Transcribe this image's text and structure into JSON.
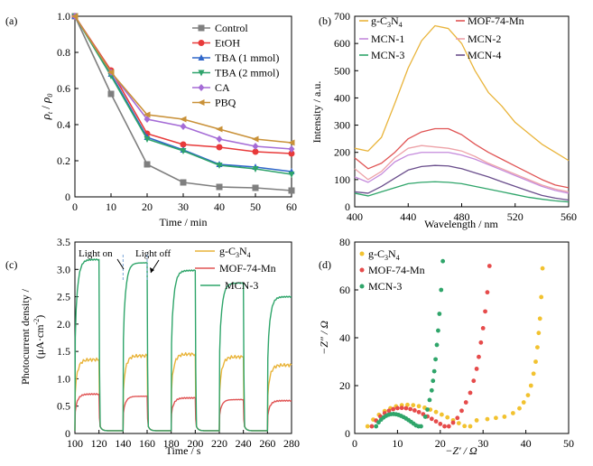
{
  "chart_data": [
    {
      "panel_label": "(a)",
      "type": "line",
      "xlabel": "Time / min",
      "ylabel": "ρt / ρ0",
      "ylabel_parts": {
        "rho_t": "ρ",
        "sub_t": "t",
        "slash": " / ",
        "rho_0": "ρ",
        "sub_0": "0"
      },
      "xlim": [
        0,
        60
      ],
      "ylim": [
        0,
        1.0
      ],
      "xticks": [
        "0",
        "10",
        "20",
        "30",
        "40",
        "50",
        "60"
      ],
      "yticks": [
        "0",
        "0.2",
        "0.4",
        "0.6",
        "0.8",
        "1.0"
      ],
      "x": [
        0,
        10,
        20,
        30,
        40,
        50,
        60
      ],
      "legend_position": "top-right",
      "series": [
        {
          "name": "Control",
          "color": "#7f7f7f",
          "marker": "square",
          "values": [
            1.0,
            0.57,
            0.18,
            0.08,
            0.055,
            0.05,
            0.035
          ]
        },
        {
          "name": "EtOH",
          "color": "#e83a3a",
          "marker": "circle",
          "values": [
            1.0,
            0.7,
            0.35,
            0.29,
            0.275,
            0.25,
            0.24
          ]
        },
        {
          "name": "TBA (1 mmol)",
          "color": "#2f66c9",
          "marker": "triangle-up",
          "values": [
            1.0,
            0.68,
            0.33,
            0.26,
            0.18,
            0.165,
            0.14
          ]
        },
        {
          "name": "TBA (2 mmol)",
          "color": "#2ea36b",
          "marker": "triangle-down",
          "values": [
            1.0,
            0.67,
            0.32,
            0.255,
            0.175,
            0.155,
            0.125
          ]
        },
        {
          "name": "CA",
          "color": "#a56cd6",
          "marker": "diamond",
          "values": [
            1.0,
            0.69,
            0.43,
            0.39,
            0.32,
            0.28,
            0.265
          ]
        },
        {
          "name": "PBQ",
          "color": "#c99138",
          "marker": "triangle-left",
          "values": [
            1.0,
            0.69,
            0.455,
            0.43,
            0.375,
            0.32,
            0.3
          ]
        }
      ]
    },
    {
      "panel_label": "(b)",
      "type": "line",
      "xlabel": "Wavelength / nm",
      "ylabel": "Intensity / a.u.",
      "xlim": [
        400,
        560
      ],
      "ylim": [
        0,
        700
      ],
      "xticks": [
        "400",
        "440",
        "480",
        "520",
        "560"
      ],
      "yticks": [
        "0",
        "100",
        "200",
        "300",
        "400",
        "500",
        "600",
        "700"
      ],
      "legend_position": "top",
      "series": [
        {
          "name": "g-C3N4",
          "name_parts": [
            "g-C",
            "3",
            "N",
            "4"
          ],
          "color": "#e9b43a",
          "points": [
            [
              400,
              215
            ],
            [
              410,
              205
            ],
            [
              420,
              255
            ],
            [
              430,
              380
            ],
            [
              440,
              510
            ],
            [
              450,
              610
            ],
            [
              460,
              665
            ],
            [
              470,
              655
            ],
            [
              480,
              600
            ],
            [
              490,
              500
            ],
            [
              500,
              420
            ],
            [
              510,
              370
            ],
            [
              520,
              310
            ],
            [
              530,
              270
            ],
            [
              540,
              230
            ],
            [
              550,
              200
            ],
            [
              560,
              170
            ]
          ]
        },
        {
          "name": "MOF-74-Mn",
          "color": "#e05454",
          "points": [
            [
              400,
              180
            ],
            [
              410,
              140
            ],
            [
              420,
              160
            ],
            [
              430,
              200
            ],
            [
              440,
              250
            ],
            [
              450,
              275
            ],
            [
              460,
              287
            ],
            [
              470,
              287
            ],
            [
              480,
              265
            ],
            [
              490,
              230
            ],
            [
              500,
              200
            ],
            [
              510,
              175
            ],
            [
              520,
              150
            ],
            [
              530,
              125
            ],
            [
              540,
              100
            ],
            [
              550,
              80
            ],
            [
              560,
              70
            ]
          ]
        },
        {
          "name": "MCN-1",
          "color": "#c58bdc",
          "points": [
            [
              400,
              110
            ],
            [
              410,
              90
            ],
            [
              420,
              120
            ],
            [
              430,
              165
            ],
            [
              440,
              190
            ],
            [
              450,
              200
            ],
            [
              460,
              200
            ],
            [
              470,
              200
            ],
            [
              480,
              190
            ],
            [
              490,
              175
            ],
            [
              500,
              155
            ],
            [
              510,
              135
            ],
            [
              520,
              115
            ],
            [
              530,
              95
            ],
            [
              540,
              75
            ],
            [
              550,
              60
            ],
            [
              560,
              50
            ]
          ]
        },
        {
          "name": "MCN-2",
          "color": "#eda2a8",
          "points": [
            [
              400,
              140
            ],
            [
              410,
              100
            ],
            [
              420,
              130
            ],
            [
              430,
              180
            ],
            [
              440,
              215
            ],
            [
              450,
              225
            ],
            [
              460,
              220
            ],
            [
              470,
              215
            ],
            [
              480,
              205
            ],
            [
              490,
              185
            ],
            [
              500,
              160
            ],
            [
              510,
              140
            ],
            [
              520,
              120
            ],
            [
              530,
              100
            ],
            [
              540,
              80
            ],
            [
              550,
              65
            ],
            [
              560,
              55
            ]
          ]
        },
        {
          "name": "MCN-3",
          "color": "#2fa56a",
          "points": [
            [
              400,
              50
            ],
            [
              410,
              40
            ],
            [
              420,
              55
            ],
            [
              430,
              70
            ],
            [
              440,
              85
            ],
            [
              450,
              90
            ],
            [
              460,
              92
            ],
            [
              470,
              90
            ],
            [
              480,
              85
            ],
            [
              490,
              75
            ],
            [
              500,
              65
            ],
            [
              510,
              55
            ],
            [
              520,
              45
            ],
            [
              530,
              35
            ],
            [
              540,
              28
            ],
            [
              550,
              22
            ],
            [
              560,
              18
            ]
          ]
        },
        {
          "name": "MCN-4",
          "color": "#6a4e8c",
          "points": [
            [
              400,
              55
            ],
            [
              410,
              50
            ],
            [
              420,
              75
            ],
            [
              430,
              105
            ],
            [
              440,
              135
            ],
            [
              450,
              148
            ],
            [
              460,
              152
            ],
            [
              470,
              150
            ],
            [
              480,
              140
            ],
            [
              490,
              125
            ],
            [
              500,
              110
            ],
            [
              510,
              92
            ],
            [
              520,
              75
            ],
            [
              530,
              58
            ],
            [
              540,
              42
            ],
            [
              550,
              32
            ],
            [
              560,
              25
            ]
          ]
        }
      ]
    },
    {
      "panel_label": "(c)",
      "type": "line",
      "xlabel": "Time / s",
      "ylabel": "Photocurrent density / (μA·cm⁻²)",
      "ylabel_line1": "Photocurrent density /",
      "ylabel_line2": "(μA·cm",
      "ylabel_sup": "-2",
      "ylabel_close": ")",
      "xlim": [
        100,
        280
      ],
      "ylim": [
        0,
        3.5
      ],
      "xticks": [
        "100",
        "120",
        "140",
        "160",
        "180",
        "200",
        "220",
        "240",
        "260",
        "280"
      ],
      "yticks": [
        "0",
        "0.5",
        "1.0",
        "1.5",
        "2.0",
        "2.5",
        "3.0",
        "3.5"
      ],
      "on_times": [
        100,
        140,
        180,
        220,
        260
      ],
      "off_times": [
        120,
        160,
        200,
        240,
        280
      ],
      "legend_position": "top-right",
      "annotations": {
        "light_on": "Light on",
        "light_off": "Light off"
      },
      "series": [
        {
          "name": "g-C3N4",
          "name_parts": [
            "g-C",
            "3",
            "N",
            "4"
          ],
          "color": "#e9b43a",
          "plateau": [
            1.35,
            1.42,
            1.45,
            1.4,
            1.25
          ]
        },
        {
          "name": "MOF-74-Mn",
          "color": "#e05454",
          "plateau": [
            0.72,
            0.68,
            0.65,
            0.62,
            0.6
          ]
        },
        {
          "name": "MCN-3",
          "color": "#2fa56a",
          "plateau": [
            3.18,
            3.12,
            2.98,
            2.75,
            2.5
          ]
        }
      ]
    },
    {
      "panel_label": "(d)",
      "type": "scatter",
      "xlabel": "−Z′ / Ω",
      "ylabel": "−Z″ / Ω",
      "xlim": [
        0,
        50
      ],
      "ylim": [
        0,
        80
      ],
      "xticks": [
        "0",
        "10",
        "20",
        "30",
        "40",
        "50"
      ],
      "yticks": [
        "0",
        "20",
        "40",
        "60",
        "80"
      ],
      "legend_position": "top-left",
      "series": [
        {
          "name": "g-C3N4",
          "name_parts": [
            "g-C",
            "3",
            "N",
            "4"
          ],
          "color": "#f2c230",
          "arc": [
            3,
            27,
            11
          ],
          "tail": [
            [
              28.5,
              5.5
            ],
            [
              31,
              6
            ],
            [
              33,
              6.5
            ],
            [
              35,
              7
            ],
            [
              37,
              8.5
            ],
            [
              38.5,
              10.5
            ],
            [
              39.5,
              13
            ],
            [
              40.5,
              16
            ],
            [
              41.2,
              20
            ],
            [
              41.8,
              25
            ],
            [
              42.3,
              30
            ],
            [
              42.7,
              36
            ],
            [
              43,
              42
            ],
            [
              43.3,
              48
            ],
            [
              43.6,
              57
            ],
            [
              43.9,
              69
            ]
          ]
        },
        {
          "name": "MOF-74-Mn",
          "color": "#e64b4b",
          "arc": [
            4,
            22,
            9.5
          ],
          "tail": [
            [
              23,
              4.5
            ],
            [
              24,
              6.5
            ],
            [
              25,
              9.5
            ],
            [
              26,
              13
            ],
            [
              27,
              17
            ],
            [
              27.8,
              22
            ],
            [
              28.5,
              27
            ],
            [
              29,
              32
            ],
            [
              29.5,
              38
            ],
            [
              30,
              44
            ],
            [
              30.5,
              51
            ],
            [
              31,
              59
            ],
            [
              31.5,
              70
            ]
          ]
        },
        {
          "name": "MCN-3",
          "color": "#2fa56a",
          "arc": [
            5,
            15.5,
            6.5
          ],
          "tail": [
            [
              16.5,
              7
            ],
            [
              17,
              10
            ],
            [
              17.5,
              14
            ],
            [
              18,
              18
            ],
            [
              18.3,
              22
            ],
            [
              18.6,
              26
            ],
            [
              18.9,
              31
            ],
            [
              19.2,
              37
            ],
            [
              19.5,
              43
            ],
            [
              19.8,
              50
            ],
            [
              20.2,
              60
            ],
            [
              20.6,
              72
            ]
          ]
        }
      ]
    }
  ]
}
